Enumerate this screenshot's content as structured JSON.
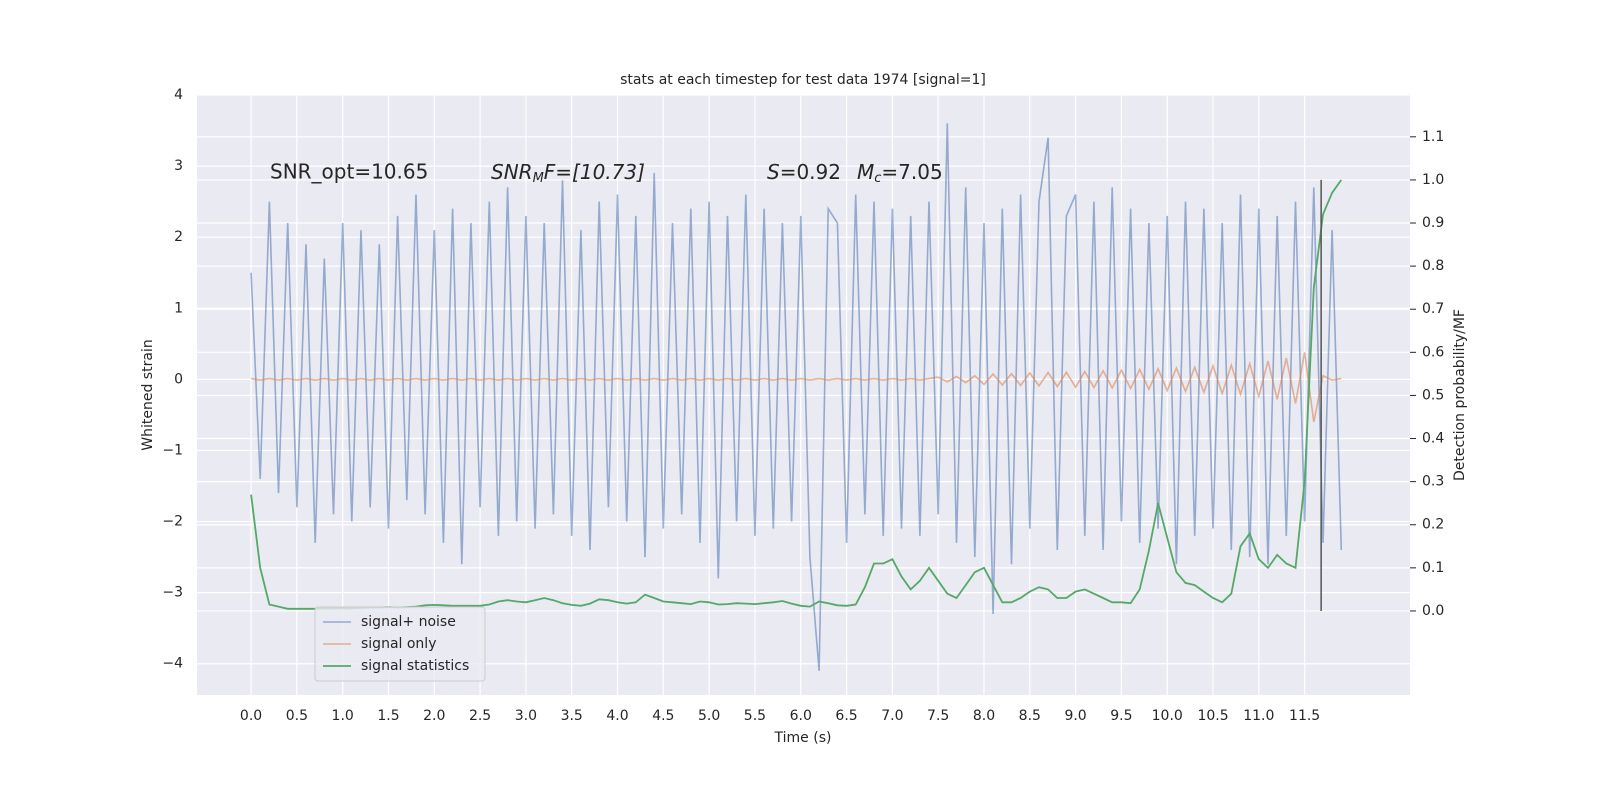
{
  "chart_data": {
    "type": "line",
    "title": "stats at each timestep for test data 1974 [signal=1]",
    "xlabel": "Time (s)",
    "ylabel": "Whitened strain",
    "y2label": "Detection probability/MF",
    "annotations": [
      [
        "SNR_opt=10.65"
      ],
      [
        "SNR",
        "M",
        "F=[10.73]"
      ],
      [
        "S",
        "=0.92",
        "M",
        "c",
        "=7.05"
      ]
    ],
    "xlim": [
      -0.59,
      12.65
    ],
    "ylim": [
      -4.44,
      4.0
    ],
    "y2lim": [
      -0.195,
      1.197
    ],
    "xticks": [
      {
        "value": 0,
        "label": "0.0"
      },
      0.5,
      {
        "value": 1,
        "label": "1.0"
      },
      1.5,
      {
        "value": 2,
        "label": "2.0"
      },
      2.5,
      {
        "value": 3,
        "label": "3.0"
      },
      3.5,
      {
        "value": 4,
        "label": "4.0"
      },
      4.5,
      {
        "value": 5,
        "label": "5.0"
      },
      5.5,
      {
        "value": 6,
        "label": "6.0"
      },
      6.5,
      {
        "value": 7,
        "label": "7.0"
      },
      7.5,
      {
        "value": 8,
        "label": "8.0"
      },
      8.5,
      {
        "value": 9,
        "label": "9.0"
      },
      9.5,
      {
        "value": 10,
        "label": "10.0"
      },
      10.5,
      {
        "value": 11,
        "label": "11.0"
      },
      11.5
    ],
    "yticks": [
      {
        "value": -4,
        "label": "−4"
      },
      {
        "value": -3,
        "label": "−3"
      },
      {
        "value": -2,
        "label": "−2"
      },
      {
        "value": -1,
        "label": "−1"
      },
      0,
      1,
      2,
      3,
      4
    ],
    "y2ticks": [
      {
        "value": 0,
        "label": "0.0"
      },
      0.1,
      0.2,
      0.3,
      0.4,
      0.5,
      0.6,
      0.7,
      0.8,
      0.9,
      {
        "value": 1,
        "label": "1.0"
      },
      1.1
    ],
    "grid": true,
    "legend": "lower left",
    "x": [
      0,
      0.1,
      0.2,
      0.3,
      0.4,
      0.5,
      0.6,
      0.7,
      0.8,
      0.9,
      1,
      1.1,
      1.2,
      1.3,
      1.4,
      1.5,
      1.6,
      1.7,
      1.8,
      1.9,
      2,
      2.1,
      2.2,
      2.3,
      2.4,
      2.5,
      2.6,
      2.7,
      2.8,
      2.9,
      3,
      3.1,
      3.2,
      3.3,
      3.4,
      3.5,
      3.6,
      3.7,
      3.8,
      3.9,
      4,
      4.1,
      4.2,
      4.3,
      4.4,
      4.5,
      4.6,
      4.7,
      4.8,
      4.9,
      5,
      5.1,
      5.2,
      5.3,
      5.4,
      5.5,
      5.6,
      5.7,
      5.8,
      5.9,
      6,
      6.1,
      6.2,
      6.3,
      6.4,
      6.5,
      6.6,
      6.7,
      6.8,
      6.9,
      7,
      7.1,
      7.2,
      7.3,
      7.4,
      7.5,
      7.6,
      7.7,
      7.8,
      7.9,
      8,
      8.1,
      8.2,
      8.3,
      8.4,
      8.5,
      8.6,
      8.7,
      8.8,
      8.9,
      9,
      9.1,
      9.2,
      9.3,
      9.4,
      9.5,
      9.6,
      9.7,
      9.8,
      9.9,
      10,
      10.1,
      10.2,
      10.3,
      10.4,
      10.5,
      10.6,
      10.7,
      10.8,
      10.9,
      11,
      11.1,
      11.2,
      11.3,
      11.4,
      11.5,
      11.6,
      11.7,
      11.8,
      11.9
    ],
    "series": [
      {
        "name": "signal+ noise",
        "color": "#4c72b0",
        "values": [
          1.5,
          -1.4,
          2.5,
          -1.6,
          2.2,
          -1.8,
          1.9,
          -2.3,
          1.7,
          -1.9,
          2.2,
          -2.0,
          2.1,
          -1.8,
          1.9,
          -2.1,
          2.3,
          -1.7,
          2.6,
          -1.9,
          2.1,
          -2.3,
          2.4,
          -2.6,
          2.2,
          -1.8,
          2.5,
          -2.2,
          2.7,
          -2.0,
          2.3,
          -2.1,
          2.2,
          -1.9,
          2.8,
          -2.2,
          2.1,
          -2.4,
          2.5,
          -1.8,
          2.6,
          -2.0,
          2.3,
          -2.5,
          2.9,
          -2.1,
          2.2,
          -1.9,
          2.4,
          -2.3,
          2.5,
          -2.8,
          2.3,
          -2.0,
          2.6,
          -2.2,
          2.4,
          -2.1,
          2.2,
          -2.0,
          2.3,
          -2.5,
          -4.1,
          2.4,
          2.2,
          -2.3,
          2.6,
          -1.9,
          2.5,
          -2.2,
          2.4,
          -2.1,
          2.3,
          -2.2,
          2.5,
          -1.9,
          3.6,
          -2.3,
          2.7,
          -2.5,
          2.2,
          -3.3,
          2.4,
          -2.6,
          2.6,
          -2.1,
          2.5,
          3.4,
          -2.4,
          2.3,
          2.6,
          -2.2,
          2.5,
          -2.4,
          2.7,
          -2.0,
          2.4,
          -2.3,
          2.2,
          -2.1,
          2.3,
          -2.6,
          2.5,
          -2.2,
          2.4,
          -2.1,
          2.2,
          -2.4,
          2.6,
          -2.5,
          2.4,
          -2.6,
          2.3,
          -2.2,
          2.5,
          -2.0,
          2.7,
          -2.3,
          2.1,
          -2.4
        ]
      },
      {
        "name": "signal only",
        "color": "#dd8452",
        "values": [
          0.01,
          -0.01,
          0.01,
          -0.01,
          0.01,
          -0.01,
          0.01,
          -0.01,
          0.01,
          -0.01,
          0.01,
          -0.01,
          0.01,
          -0.01,
          0.01,
          -0.01,
          0.01,
          -0.01,
          0.01,
          -0.01,
          0.01,
          -0.01,
          0.01,
          -0.01,
          0.01,
          -0.01,
          0.01,
          -0.01,
          0.01,
          -0.01,
          0.01,
          -0.01,
          0.01,
          -0.01,
          0.01,
          -0.01,
          0.01,
          -0.01,
          0.01,
          -0.01,
          0.01,
          -0.01,
          0.01,
          -0.01,
          0.01,
          -0.01,
          0.01,
          -0.01,
          0.01,
          -0.01,
          0.01,
          -0.01,
          0.01,
          -0.01,
          0.01,
          -0.01,
          0.01,
          -0.01,
          0.01,
          -0.01,
          0.01,
          -0.01,
          0.01,
          -0.01,
          0.01,
          -0.01,
          0.01,
          -0.01,
          0.01,
          -0.01,
          0.01,
          -0.01,
          0.01,
          -0.01,
          0.01,
          0.03,
          -0.035,
          0.04,
          -0.045,
          0.05,
          -0.07,
          0.075,
          -0.08,
          0.08,
          -0.085,
          0.09,
          -0.09,
          0.095,
          -0.1,
          0.1,
          -0.11,
          0.11,
          -0.115,
          0.12,
          -0.12,
          0.13,
          -0.13,
          0.14,
          -0.14,
          0.15,
          -0.16,
          0.16,
          -0.17,
          0.17,
          -0.18,
          0.19,
          -0.2,
          0.2,
          -0.21,
          0.22,
          -0.24,
          0.26,
          -0.28,
          0.3,
          -0.34,
          0.38,
          -0.6,
          0.05,
          -0.01,
          0.01
        ]
      },
      {
        "name": "signal statistics",
        "color": "#55a868",
        "axis": "y2",
        "values": [
          0.27,
          0.1,
          0.015,
          0.01,
          0.005,
          0.005,
          0.005,
          0.005,
          0.006,
          0.006,
          0.006,
          0.006,
          0.007,
          0.008,
          0.008,
          0.009,
          0.008,
          0.009,
          0.01,
          0.013,
          0.014,
          0.013,
          0.012,
          0.012,
          0.012,
          0.012,
          0.015,
          0.022,
          0.025,
          0.022,
          0.02,
          0.025,
          0.03,
          0.025,
          0.018,
          0.014,
          0.012,
          0.017,
          0.027,
          0.025,
          0.02,
          0.017,
          0.02,
          0.038,
          0.03,
          0.022,
          0.02,
          0.018,
          0.016,
          0.022,
          0.02,
          0.015,
          0.016,
          0.018,
          0.017,
          0.016,
          0.018,
          0.02,
          0.023,
          0.017,
          0.012,
          0.01,
          0.022,
          0.018,
          0.013,
          0.012,
          0.015,
          0.055,
          0.11,
          0.11,
          0.12,
          0.08,
          0.05,
          0.07,
          0.1,
          0.07,
          0.04,
          0.03,
          0.06,
          0.09,
          0.1,
          0.06,
          0.02,
          0.02,
          0.03,
          0.045,
          0.055,
          0.05,
          0.03,
          0.03,
          0.045,
          0.05,
          0.04,
          0.03,
          0.02,
          0.02,
          0.018,
          0.05,
          0.14,
          0.25,
          0.17,
          0.09,
          0.065,
          0.06,
          0.045,
          0.03,
          0.02,
          0.04,
          0.15,
          0.18,
          0.12,
          0.1,
          0.13,
          0.11,
          0.1,
          0.3,
          0.75,
          0.92,
          0.97,
          1.0
        ]
      }
    ],
    "vline": {
      "x": 11.68,
      "y2": [
        0,
        1
      ],
      "color": "#555555"
    }
  }
}
